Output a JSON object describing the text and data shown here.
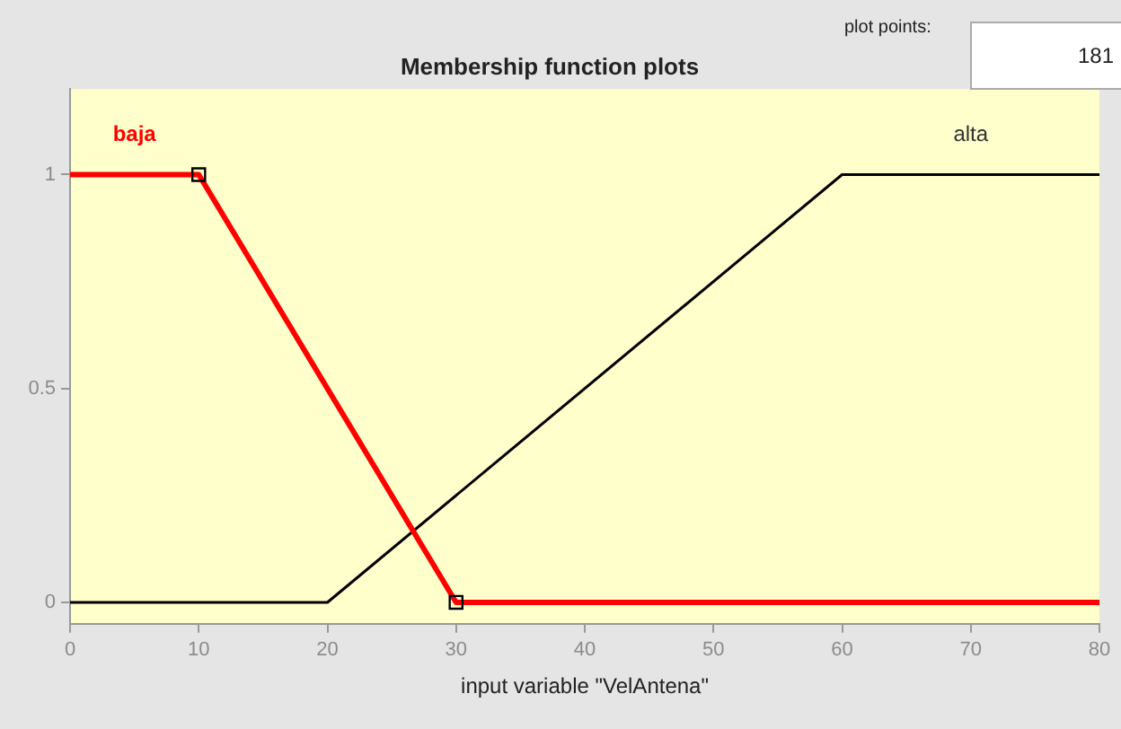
{
  "chart_data": {
    "type": "line",
    "title": "Membership function plots",
    "xlabel": "input variable \"VelAntena\"",
    "xlim": [
      0,
      80
    ],
    "xticks": [
      0,
      10,
      20,
      30,
      40,
      50,
      60,
      70,
      80
    ],
    "ylim": [
      -0.05,
      1.2
    ],
    "yticks": [
      0,
      0.5,
      1
    ],
    "grid": false,
    "legend": false,
    "line_style": "solid",
    "annotations": [
      "plot points:",
      "181"
    ],
    "series": [
      {
        "name": "baja",
        "color": "#ff0000",
        "x": [
          0,
          10,
          30,
          80
        ],
        "values": [
          1,
          1,
          0,
          0
        ],
        "marker": "none"
      },
      {
        "name": "alta",
        "color": "#000000",
        "x": [
          0,
          20,
          60,
          80
        ],
        "values": [
          0,
          0,
          1,
          1
        ],
        "marker": "none"
      },
      {
        "type": "scatter",
        "color": "#000000",
        "x": [
          10,
          30
        ],
        "values": [
          1,
          0
        ],
        "marker": "square"
      }
    ]
  }
}
